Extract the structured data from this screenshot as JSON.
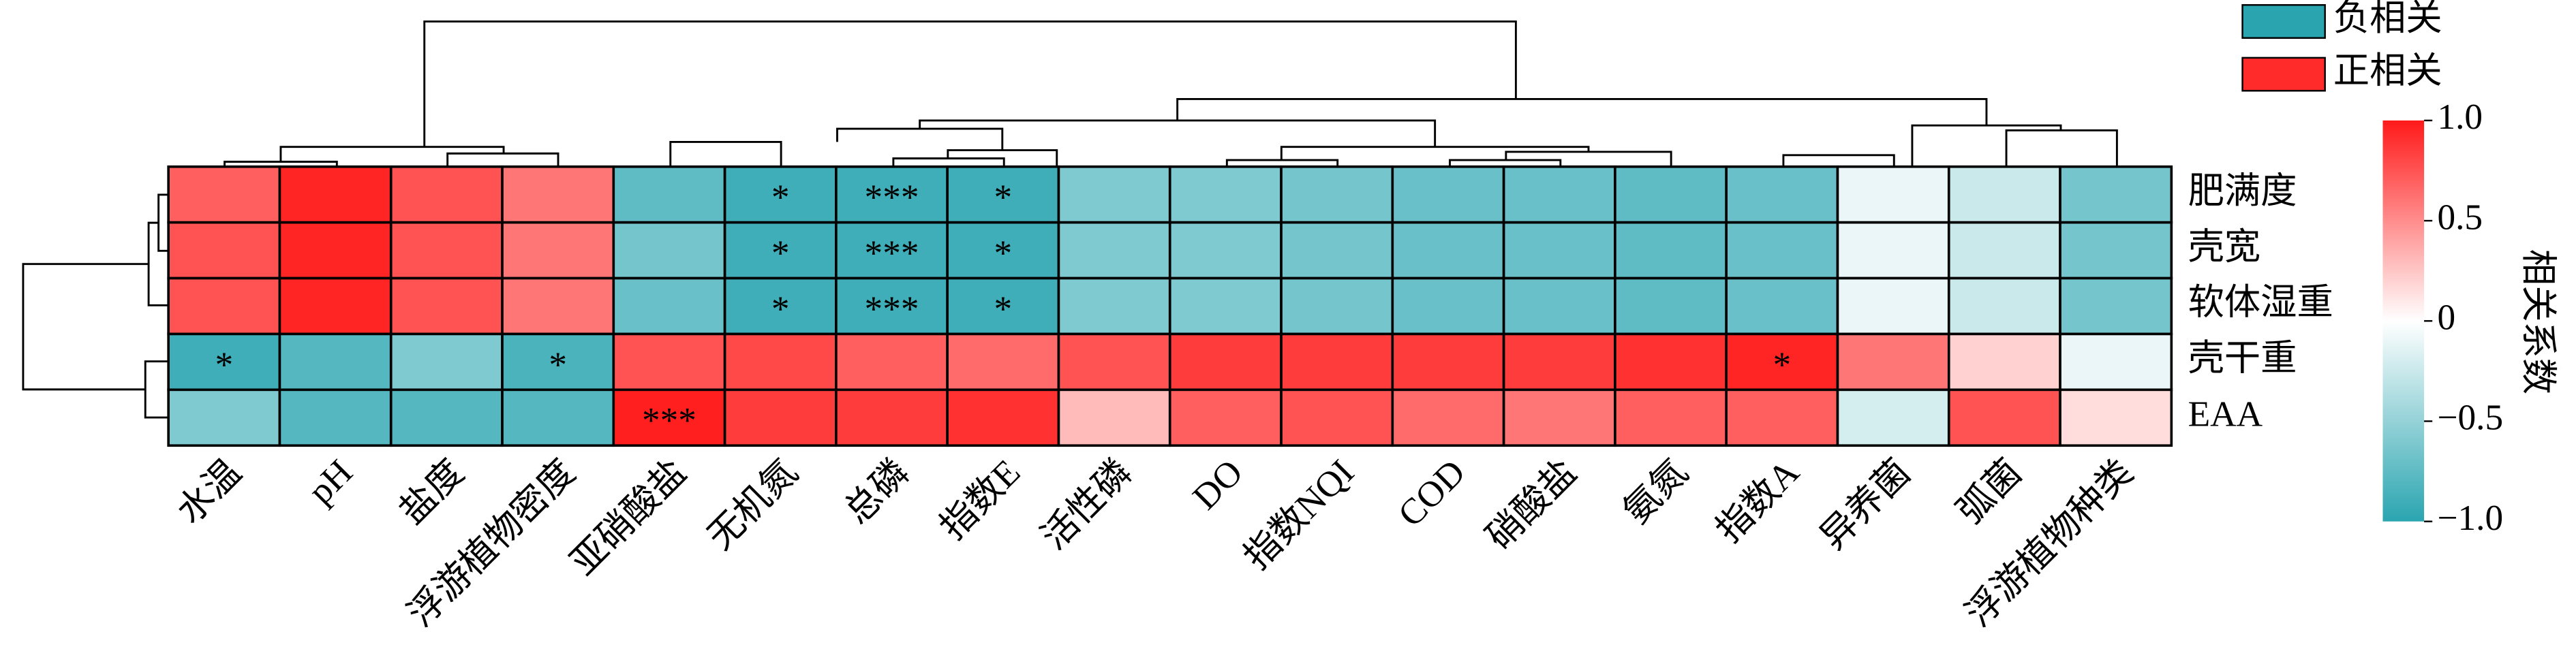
{
  "chart_data": {
    "type": "heatmap",
    "columns": [
      "水温",
      "pH",
      "盐度",
      "浮游植物密度",
      "亚硝酸盐",
      "无机氮",
      "总磷",
      "指数E",
      "活性磷",
      "DO",
      "指数NQI",
      "COD",
      "硝酸盐",
      "氨氮",
      "指数A",
      "异养菌",
      "弧菌",
      "浮游植物种类"
    ],
    "rows": [
      "肥满度",
      "壳宽",
      "软体湿重",
      "壳干重",
      "EAA"
    ],
    "values": [
      [
        0.7,
        0.95,
        0.75,
        0.6,
        -0.75,
        -0.9,
        -0.9,
        -0.9,
        -0.6,
        -0.6,
        -0.65,
        -0.7,
        -0.7,
        -0.75,
        -0.7,
        -0.1,
        -0.25,
        -0.65
      ],
      [
        0.75,
        0.95,
        0.75,
        0.6,
        -0.65,
        -0.9,
        -0.9,
        -0.9,
        -0.6,
        -0.6,
        -0.65,
        -0.7,
        -0.7,
        -0.75,
        -0.7,
        -0.1,
        -0.25,
        -0.65
      ],
      [
        0.75,
        0.95,
        0.75,
        0.6,
        -0.7,
        -0.9,
        -0.9,
        -0.9,
        -0.6,
        -0.6,
        -0.65,
        -0.7,
        -0.7,
        -0.75,
        -0.7,
        -0.1,
        -0.25,
        -0.65
      ],
      [
        -0.9,
        -0.8,
        -0.6,
        -0.85,
        0.75,
        0.8,
        0.7,
        0.65,
        0.75,
        0.85,
        0.85,
        0.85,
        0.85,
        0.9,
        0.95,
        0.6,
        0.2,
        -0.1
      ],
      [
        -0.6,
        -0.8,
        -0.8,
        -0.8,
        0.98,
        0.85,
        0.85,
        0.9,
        0.3,
        0.7,
        0.75,
        0.65,
        0.6,
        0.7,
        0.7,
        -0.2,
        0.75,
        0.15
      ]
    ],
    "stars": [
      [
        null,
        null,
        null,
        null,
        null,
        "*",
        "***",
        "*",
        null,
        null,
        null,
        null,
        null,
        null,
        null,
        null,
        null,
        null
      ],
      [
        null,
        null,
        null,
        null,
        null,
        "*",
        "***",
        "*",
        null,
        null,
        null,
        null,
        null,
        null,
        null,
        null,
        null,
        null
      ],
      [
        null,
        null,
        null,
        null,
        null,
        "*",
        "***",
        "*",
        null,
        null,
        null,
        null,
        null,
        null,
        null,
        null,
        null,
        null
      ],
      [
        "*",
        null,
        null,
        "*",
        null,
        null,
        null,
        null,
        null,
        null,
        null,
        null,
        null,
        null,
        "*",
        null,
        null,
        null
      ],
      [
        null,
        null,
        null,
        null,
        "***",
        null,
        null,
        null,
        null,
        null,
        null,
        null,
        null,
        null,
        null,
        null,
        null,
        null
      ]
    ],
    "colormap": [
      "#2aa5b0",
      "#ffffff",
      "#ff1a1a"
    ],
    "clim": [
      -1,
      1
    ],
    "cticks": [
      {
        "value": 1,
        "label": "1.0"
      },
      0.5,
      0,
      {
        "value": -0.5,
        "label": "−0.5"
      },
      {
        "value": -1,
        "label": "−1.0"
      }
    ],
    "colorbar_label": "相关系数",
    "legend": [
      {
        "name": "负相关",
        "color": "#2aa5b0"
      },
      {
        "name": "正相关",
        "color": "#ff2a2a"
      }
    ]
  }
}
